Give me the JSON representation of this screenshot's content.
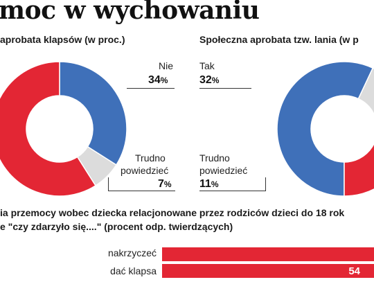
{
  "title": "moc w wychowaniu",
  "colors": {
    "red": "#e32634",
    "blue": "#3f70b9",
    "grey": "#dcdcdc",
    "bar": "#e32634"
  },
  "chart_data": [
    {
      "type": "pie",
      "title": "aprobata klapsów (w proc.)",
      "slices": [
        {
          "label": "Nie",
          "value": 34,
          "color": "#3f70b9"
        },
        {
          "label": "Trudno powiedzieć",
          "value": 7,
          "color": "#dcdcdc"
        },
        {
          "label": "",
          "value": 59,
          "color": "#e32634"
        }
      ],
      "value_labels": [
        "34%",
        "7%"
      ]
    },
    {
      "type": "pie",
      "title": "Społeczna aprobata tzw. lania (w p",
      "slices": [
        {
          "label": "",
          "value": 57,
          "color": "#3f70b9"
        },
        {
          "label": "Trudno powiedzieć",
          "value": 11,
          "color": "#dcdcdc"
        },
        {
          "label": "Tak",
          "value": 32,
          "color": "#e32634"
        }
      ],
      "value_labels": [
        "32%",
        "11%"
      ]
    },
    {
      "type": "bar",
      "title_lines": [
        "ia przemocy wobec dziecka relacjonowane przez rodziców dzieci do 18 rok",
        "e \"czy zdarzyło się....\" (procent odp. twierdzących)"
      ],
      "categories": [
        "nakrzyczeć",
        "dać klapsa"
      ],
      "values": [
        null,
        54
      ],
      "value_labels": [
        "",
        "54"
      ]
    }
  ],
  "labels": {
    "left_nie": "Nie",
    "left_nie_val": "34",
    "left_trudno_1": "Trudno",
    "left_trudno_2": "powiedzieć",
    "left_trudno_val": "7",
    "right_tak": "Tak",
    "right_tak_val": "32",
    "right_trudno_1": "Trudno",
    "right_trudno_2": "powiedzieć",
    "right_trudno_val": "11",
    "pct": "%"
  }
}
